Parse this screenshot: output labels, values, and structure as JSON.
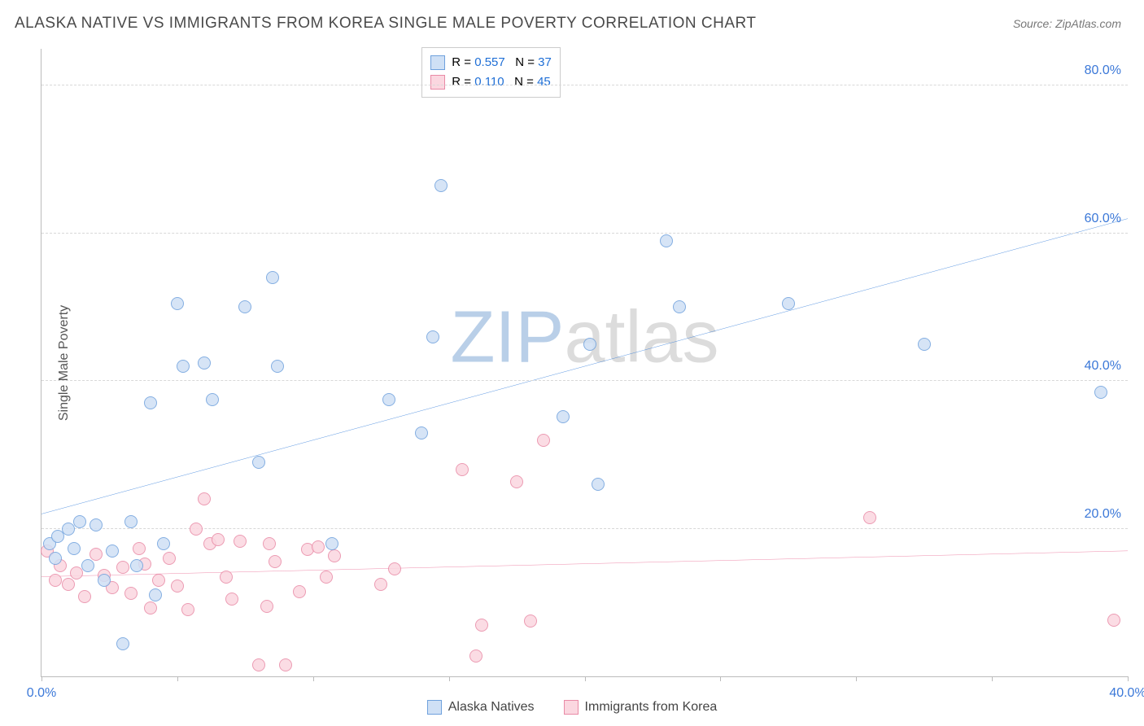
{
  "title": "ALASKA NATIVE VS IMMIGRANTS FROM KOREA SINGLE MALE POVERTY CORRELATION CHART",
  "source_label": "Source: ZipAtlas.com",
  "ylabel": "Single Male Poverty",
  "watermark": {
    "part1": "ZIP",
    "part2": "atlas",
    "color1": "#b9cfe8",
    "color2": "#dcdcdc"
  },
  "chart": {
    "type": "scatter",
    "xlim": [
      0,
      40
    ],
    "ylim": [
      0,
      85
    ],
    "x_ticks": [
      0,
      5,
      10,
      15,
      20,
      25,
      30,
      35,
      40
    ],
    "x_tick_labels": {
      "0": "0.0%",
      "40": "40.0%"
    },
    "y_ticks": [
      20,
      40,
      60,
      80
    ],
    "y_tick_labels": [
      "20.0%",
      "40.0%",
      "60.0%",
      "80.0%"
    ],
    "x_tick_color": "#3b78d8",
    "y_tick_color": "#3b78d8",
    "grid_color": "#d8d8d8",
    "background_color": "#ffffff",
    "marker_radius": 8,
    "marker_stroke_width": 1.2,
    "line_width": 2
  },
  "series": [
    {
      "name": "Alaska Natives",
      "fill": "#cfe0f5",
      "stroke": "#6fa1dd",
      "line_color": "#1f6fd6",
      "R": "0.557",
      "N": "37",
      "regression": {
        "x1": 0,
        "y1": 22,
        "x2": 40,
        "y2": 62
      },
      "points": [
        [
          0.3,
          18
        ],
        [
          0.5,
          16
        ],
        [
          0.6,
          19
        ],
        [
          1,
          20
        ],
        [
          1.2,
          17.3
        ],
        [
          1.4,
          21
        ],
        [
          1.7,
          15
        ],
        [
          2,
          20.5
        ],
        [
          2.3,
          13
        ],
        [
          2.6,
          17
        ],
        [
          3,
          4.4
        ],
        [
          3.3,
          21
        ],
        [
          3.5,
          15
        ],
        [
          4,
          37
        ],
        [
          4.2,
          11
        ],
        [
          4.5,
          18
        ],
        [
          5,
          50.5
        ],
        [
          5.2,
          42
        ],
        [
          6,
          42.5
        ],
        [
          6.3,
          37.5
        ],
        [
          7.5,
          50
        ],
        [
          8,
          29
        ],
        [
          8.5,
          54
        ],
        [
          8.7,
          42
        ],
        [
          10.7,
          18
        ],
        [
          12.8,
          37.5
        ],
        [
          14,
          33
        ],
        [
          14.4,
          46
        ],
        [
          14.7,
          66.5
        ],
        [
          19.2,
          35.2
        ],
        [
          20.2,
          45
        ],
        [
          20.5,
          26
        ],
        [
          23,
          59
        ],
        [
          23.5,
          50
        ],
        [
          27.5,
          50.5
        ],
        [
          32.5,
          45
        ],
        [
          39,
          38.5
        ]
      ]
    },
    {
      "name": "Immigrants from Korea",
      "fill": "#fbd7e0",
      "stroke": "#e98aa6",
      "line_color": "#e75d8a",
      "R": "0.110",
      "N": "45",
      "regression": {
        "x1": 0,
        "y1": 13.5,
        "x2": 40,
        "y2": 17
      },
      "points": [
        [
          0.2,
          17
        ],
        [
          0.5,
          13
        ],
        [
          0.7,
          15
        ],
        [
          1,
          12.5
        ],
        [
          1.3,
          14
        ],
        [
          1.6,
          10.8
        ],
        [
          2,
          16.5
        ],
        [
          2.3,
          13.7
        ],
        [
          2.6,
          12
        ],
        [
          3,
          14.8
        ],
        [
          3.3,
          11.3
        ],
        [
          3.6,
          17.3
        ],
        [
          3.8,
          15.2
        ],
        [
          4,
          9.3
        ],
        [
          4.3,
          13
        ],
        [
          4.7,
          16
        ],
        [
          5,
          12.2
        ],
        [
          5.4,
          9
        ],
        [
          5.7,
          20
        ],
        [
          6,
          24
        ],
        [
          6.2,
          18
        ],
        [
          6.5,
          18.5
        ],
        [
          6.8,
          13.5
        ],
        [
          7,
          10.5
        ],
        [
          7.3,
          18.3
        ],
        [
          8,
          1.5
        ],
        [
          8.3,
          9.5
        ],
        [
          8.4,
          18
        ],
        [
          8.6,
          15.5
        ],
        [
          9,
          1.5
        ],
        [
          9.5,
          11.5
        ],
        [
          9.8,
          17.2
        ],
        [
          10.2,
          17.5
        ],
        [
          10.5,
          13.5
        ],
        [
          10.8,
          16.3
        ],
        [
          12.5,
          12.5
        ],
        [
          13,
          14.5
        ],
        [
          15.5,
          28
        ],
        [
          16,
          2.8
        ],
        [
          16.2,
          7
        ],
        [
          17.5,
          26.3
        ],
        [
          18,
          7.5
        ],
        [
          18.5,
          32
        ],
        [
          30.5,
          21.5
        ],
        [
          39.5,
          7.6
        ]
      ]
    }
  ],
  "stat_box": {
    "r_value_color": "#1f6fd6",
    "n_value_color": "#1f6fd6"
  },
  "legend_labels": [
    "Alaska Natives",
    "Immigrants from Korea"
  ]
}
